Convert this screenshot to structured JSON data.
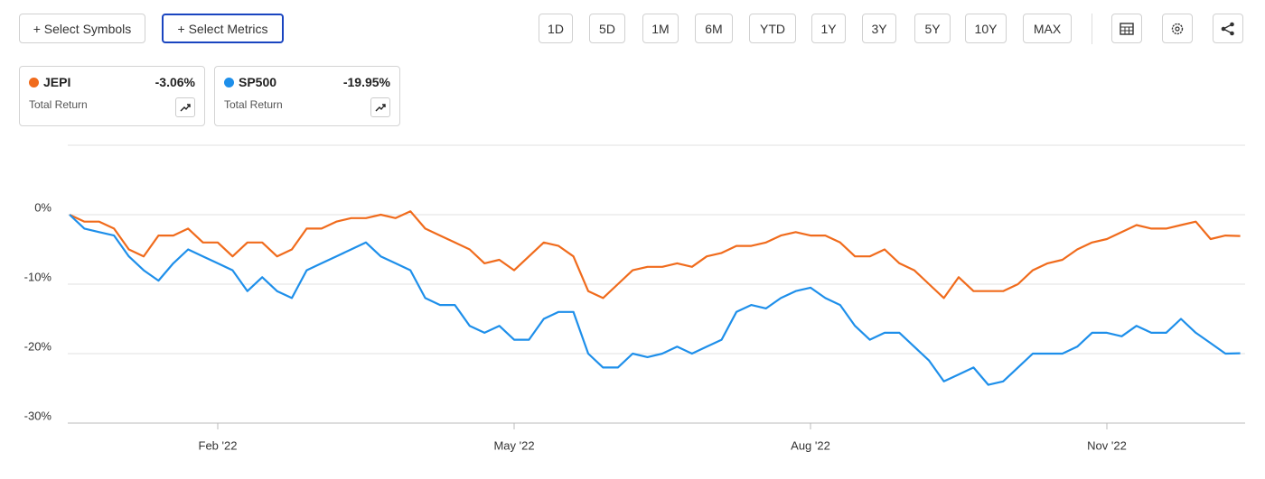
{
  "toolbar": {
    "symbols_button": "+ Select Symbols",
    "metrics_button": "+ Select Metrics",
    "periods": [
      "1D",
      "5D",
      "1M",
      "6M",
      "YTD",
      "1Y",
      "3Y",
      "5Y",
      "10Y",
      "MAX"
    ]
  },
  "chart_data": {
    "type": "line",
    "categories": [
      null,
      null,
      null,
      null,
      null,
      null,
      null,
      null,
      null,
      null,
      "Feb '22",
      null,
      null,
      null,
      null,
      null,
      null,
      null,
      null,
      null,
      null,
      null,
      null,
      null,
      null,
      null,
      null,
      null,
      null,
      null,
      "May '22",
      null,
      null,
      null,
      null,
      null,
      null,
      null,
      null,
      null,
      null,
      null,
      null,
      null,
      null,
      null,
      null,
      null,
      null,
      null,
      "Aug '22",
      null,
      null,
      null,
      null,
      null,
      null,
      null,
      null,
      null,
      null,
      null,
      null,
      null,
      null,
      null,
      null,
      null,
      null,
      null,
      "Nov '22",
      null,
      null,
      null,
      null,
      null,
      null,
      null,
      null,
      null
    ],
    "series": [
      {
        "name": "JEPI",
        "color": "#f06b1c",
        "metric": "Total Return",
        "summary": {
          "value": -3.06,
          "label": "-3.06%"
        },
        "values": [
          0,
          -1,
          -1,
          -2,
          -5,
          -6,
          -3,
          -3,
          -2,
          -4,
          -4,
          -6,
          -4,
          -4,
          -6,
          -5,
          -2,
          -2,
          -1,
          -0.5,
          -0.5,
          0,
          -0.5,
          0.5,
          -2,
          -3,
          -4,
          -5,
          -7,
          -6.5,
          -8,
          -6,
          -4,
          -4.5,
          -6,
          -11,
          -12,
          -10,
          -8,
          -7.5,
          -7.5,
          -7,
          -7.5,
          -6,
          -5.5,
          -4.5,
          -4.5,
          -4,
          -3,
          -2.5,
          -3,
          -3,
          -4,
          -6,
          -6,
          -5,
          -7,
          -8,
          -10,
          -12,
          -9,
          -11,
          -11,
          -11,
          -10,
          -8,
          -7,
          -6.5,
          -5,
          -4,
          -3.5,
          -2.5,
          -1.5,
          -2,
          -2,
          -1.5,
          -1,
          -3.5,
          -3,
          -3.06
        ]
      },
      {
        "name": "SP500",
        "color": "#1e8fea",
        "metric": "Total Return",
        "summary": {
          "value": -19.95,
          "label": "-19.95%"
        },
        "values": [
          0,
          -2,
          -2.5,
          -3,
          -6,
          -8,
          -9.5,
          -7,
          -5,
          -6,
          -7,
          -8,
          -11,
          -9,
          -11,
          -12,
          -8,
          -7,
          -6,
          -5,
          -4,
          -6,
          -7,
          -8,
          -12,
          -13,
          -13,
          -16,
          -17,
          -16,
          -18,
          -18,
          -15,
          -14,
          -14,
          -20,
          -22,
          -22,
          -20,
          -20.5,
          -20,
          -19,
          -20,
          -19,
          -18,
          -14,
          -13,
          -13.5,
          -12,
          -11,
          -10.5,
          -12,
          -13,
          -16,
          -18,
          -17,
          -17,
          -19,
          -21,
          -24,
          -23,
          -22,
          -24.5,
          -24,
          -22,
          -20,
          -20,
          -20,
          -19,
          -17,
          -17,
          -17.5,
          -16,
          -17,
          -17,
          -15,
          -17,
          -18.5,
          -20,
          -19.95
        ]
      }
    ],
    "ylim": [
      -30,
      10
    ],
    "yticks": [
      {
        "value": 0,
        "label": "0%"
      },
      {
        "value": -10,
        "label": "-10%"
      },
      {
        "value": -20,
        "label": "-20%"
      },
      {
        "value": -30,
        "label": "-30%"
      }
    ],
    "grid": true
  }
}
